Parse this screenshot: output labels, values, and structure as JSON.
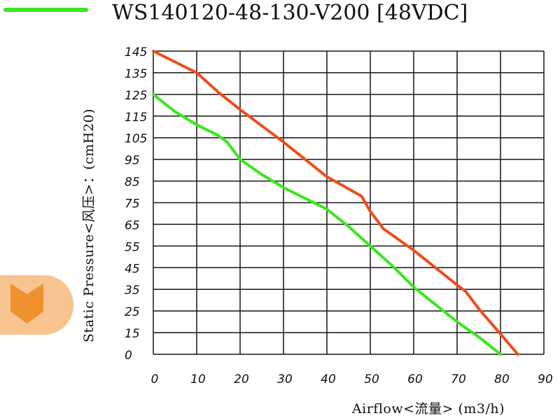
{
  "chart_data": {
    "type": "line",
    "xlabel": "Airflow<流量> (m3/h)",
    "ylabel": "Static Pressure<风压>：(cmH20)",
    "xticks": [
      0,
      10,
      20,
      30,
      40,
      50,
      60,
      70,
      80,
      90
    ],
    "yticks": [
      145,
      135,
      125,
      115,
      105,
      95,
      85,
      75,
      65,
      55,
      45,
      35,
      25,
      15,
      0
    ],
    "xlim": [
      0,
      90
    ],
    "ylim": [
      0,
      145
    ],
    "grid": true,
    "legend_position": "top-left",
    "series": [
      {
        "name": "WS140120-48-130-V200 [48VDC]",
        "color": "#3ae61e",
        "points": [
          [
            0,
            125
          ],
          [
            5,
            117
          ],
          [
            10,
            111
          ],
          [
            15,
            106
          ],
          [
            17,
            103
          ],
          [
            20,
            95
          ],
          [
            25,
            88
          ],
          [
            30,
            82
          ],
          [
            35,
            77
          ],
          [
            40,
            72
          ],
          [
            45,
            64
          ],
          [
            50,
            55
          ],
          [
            55,
            46
          ],
          [
            60,
            36
          ],
          [
            65,
            28
          ],
          [
            70,
            20
          ],
          [
            75,
            12
          ],
          [
            80,
            0
          ]
        ]
      },
      {
        "color": "#f04b1c",
        "points": [
          [
            0,
            145
          ],
          [
            10,
            135
          ],
          [
            15,
            126
          ],
          [
            20,
            118
          ],
          [
            30,
            103
          ],
          [
            40,
            87
          ],
          [
            48,
            78
          ],
          [
            50,
            71
          ],
          [
            53,
            63
          ],
          [
            60,
            53
          ],
          [
            65,
            45
          ],
          [
            70,
            37
          ],
          [
            72,
            34
          ],
          [
            75,
            26
          ],
          [
            80,
            14
          ],
          [
            84,
            0
          ]
        ]
      }
    ]
  },
  "side_tab": {
    "icon": "chevron-bookmark-icon",
    "background": "#f7c38f",
    "icon_color": "#f0912f"
  }
}
